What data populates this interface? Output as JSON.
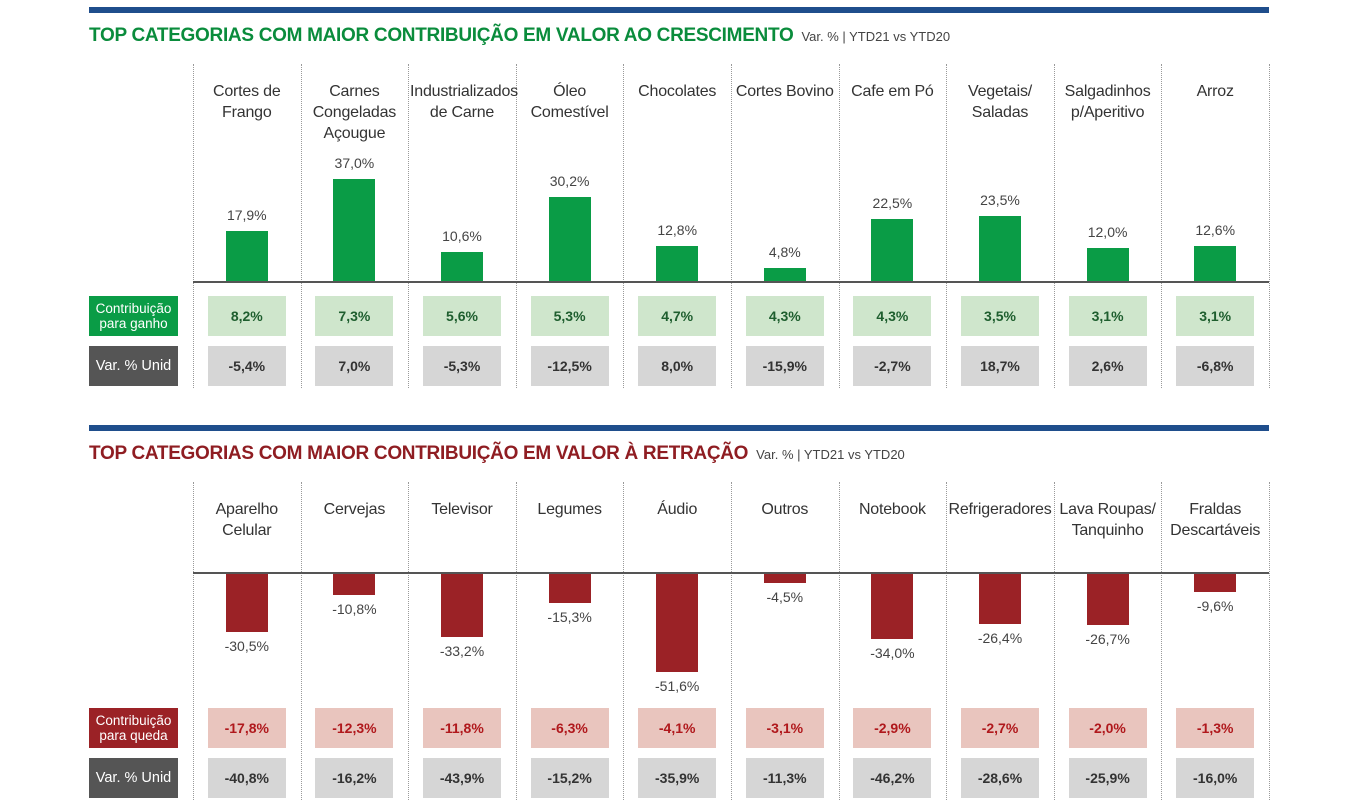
{
  "colors": {
    "rule": "#1f4e8c",
    "green": "#0a9c46",
    "green_title": "#0a8c3c",
    "green_cell_bg": "#cfe6cc",
    "green_cell_text": "#1e5e2e",
    "red": "#9b2226",
    "red_title": "#8f1d22",
    "red_cell_bg": "#e9c5be",
    "red_cell_text": "#b0181c",
    "gray_cell_bg": "#d6d6d6",
    "gray_cell_text": "#333333",
    "label_gray": "#555555"
  },
  "growth": {
    "title": "TOP CATEGORIAS COM MAIOR CONTRIBUIÇÃO EM VALOR AO CRESCIMENTO",
    "subtitle": "Var. % | YTD21 vs YTD20",
    "row1_label": "Contribuição para ganho",
    "row2_label": "Var. % Unid",
    "categories": [
      "Cortes de Frango",
      "Carnes Congeladas Açougue",
      "Industrializados de Carne",
      "Óleo Comestível",
      "Chocolates",
      "Cortes Bovino",
      "Cafe em Pó",
      "Vegetais/ Saladas",
      "Salgadinhos p/Aperitivo",
      "Arroz"
    ],
    "value_labels": [
      "17,9%",
      "37,0%",
      "10,6%",
      "30,2%",
      "12,8%",
      "4,8%",
      "22,5%",
      "23,5%",
      "12,0%",
      "12,6%"
    ],
    "contribution": [
      "8,2%",
      "7,3%",
      "5,6%",
      "5,3%",
      "4,7%",
      "4,3%",
      "4,3%",
      "3,5%",
      "3,1%",
      "3,1%"
    ],
    "unit_var": [
      "-5,4%",
      "7,0%",
      "-5,3%",
      "-12,5%",
      "8,0%",
      "-15,9%",
      "-2,7%",
      "18,7%",
      "2,6%",
      "-6,8%"
    ]
  },
  "decline": {
    "title": "TOP CATEGORIAS COM MAIOR CONTRIBUIÇÃO EM VALOR À RETRAÇÃO",
    "subtitle": "Var. % | YTD21 vs YTD20",
    "row1_label": "Contribuição para queda",
    "row2_label": "Var. % Unid",
    "categories": [
      "Aparelho Celular",
      "Cervejas",
      "Televisor",
      "Legumes",
      "Áudio",
      "Outros",
      "Notebook",
      "Refrigeradores",
      "Lava Roupas/ Tanquinho",
      "Fraldas Descartáveis"
    ],
    "value_labels": [
      "-30,5%",
      "-10,8%",
      "-33,2%",
      "-15,3%",
      "-51,6%",
      "-4,5%",
      "-34,0%",
      "-26,4%",
      "-26,7%",
      "-9,6%"
    ],
    "contribution": [
      "-17,8%",
      "-12,3%",
      "-11,8%",
      "-6,3%",
      "-4,1%",
      "-3,1%",
      "-2,9%",
      "-2,7%",
      "-2,0%",
      "-1,3%"
    ],
    "unit_var": [
      "-40,8%",
      "-16,2%",
      "-43,9%",
      "-15,2%",
      "-35,9%",
      "-11,3%",
      "-46,2%",
      "-28,6%",
      "-25,9%",
      "-16,0%"
    ]
  },
  "chart_data": [
    {
      "type": "bar",
      "title": "TOP CATEGORIAS COM MAIOR CONTRIBUIÇÃO EM VALOR AO CRESCIMENTO",
      "subtitle": "Var. % | YTD21 vs YTD20",
      "categories": [
        "Cortes de Frango",
        "Carnes Congeladas Açougue",
        "Industrializados de Carne",
        "Óleo Comestível",
        "Chocolates",
        "Cortes Bovino",
        "Cafe em Pó",
        "Vegetais/ Saladas",
        "Salgadinhos p/Aperitivo",
        "Arroz"
      ],
      "values": [
        17.9,
        37.0,
        10.6,
        30.2,
        12.8,
        4.8,
        22.5,
        23.5,
        12.0,
        12.6
      ],
      "grid": false
    },
    {
      "type": "bar",
      "title": "TOP CATEGORIAS COM MAIOR CONTRIBUIÇÃO EM VALOR À RETRAÇÃO",
      "subtitle": "Var. % | YTD21 vs YTD20",
      "categories": [
        "Aparelho Celular",
        "Cervejas",
        "Televisor",
        "Legumes",
        "Áudio",
        "Outros",
        "Notebook",
        "Refrigeradores",
        "Lava Roupas/ Tanquinho",
        "Fraldas Descartáveis"
      ],
      "values": [
        -30.5,
        -10.8,
        -33.2,
        -15.3,
        -51.6,
        -4.5,
        -34.0,
        -26.4,
        -26.7,
        -9.6
      ],
      "grid": false
    }
  ]
}
